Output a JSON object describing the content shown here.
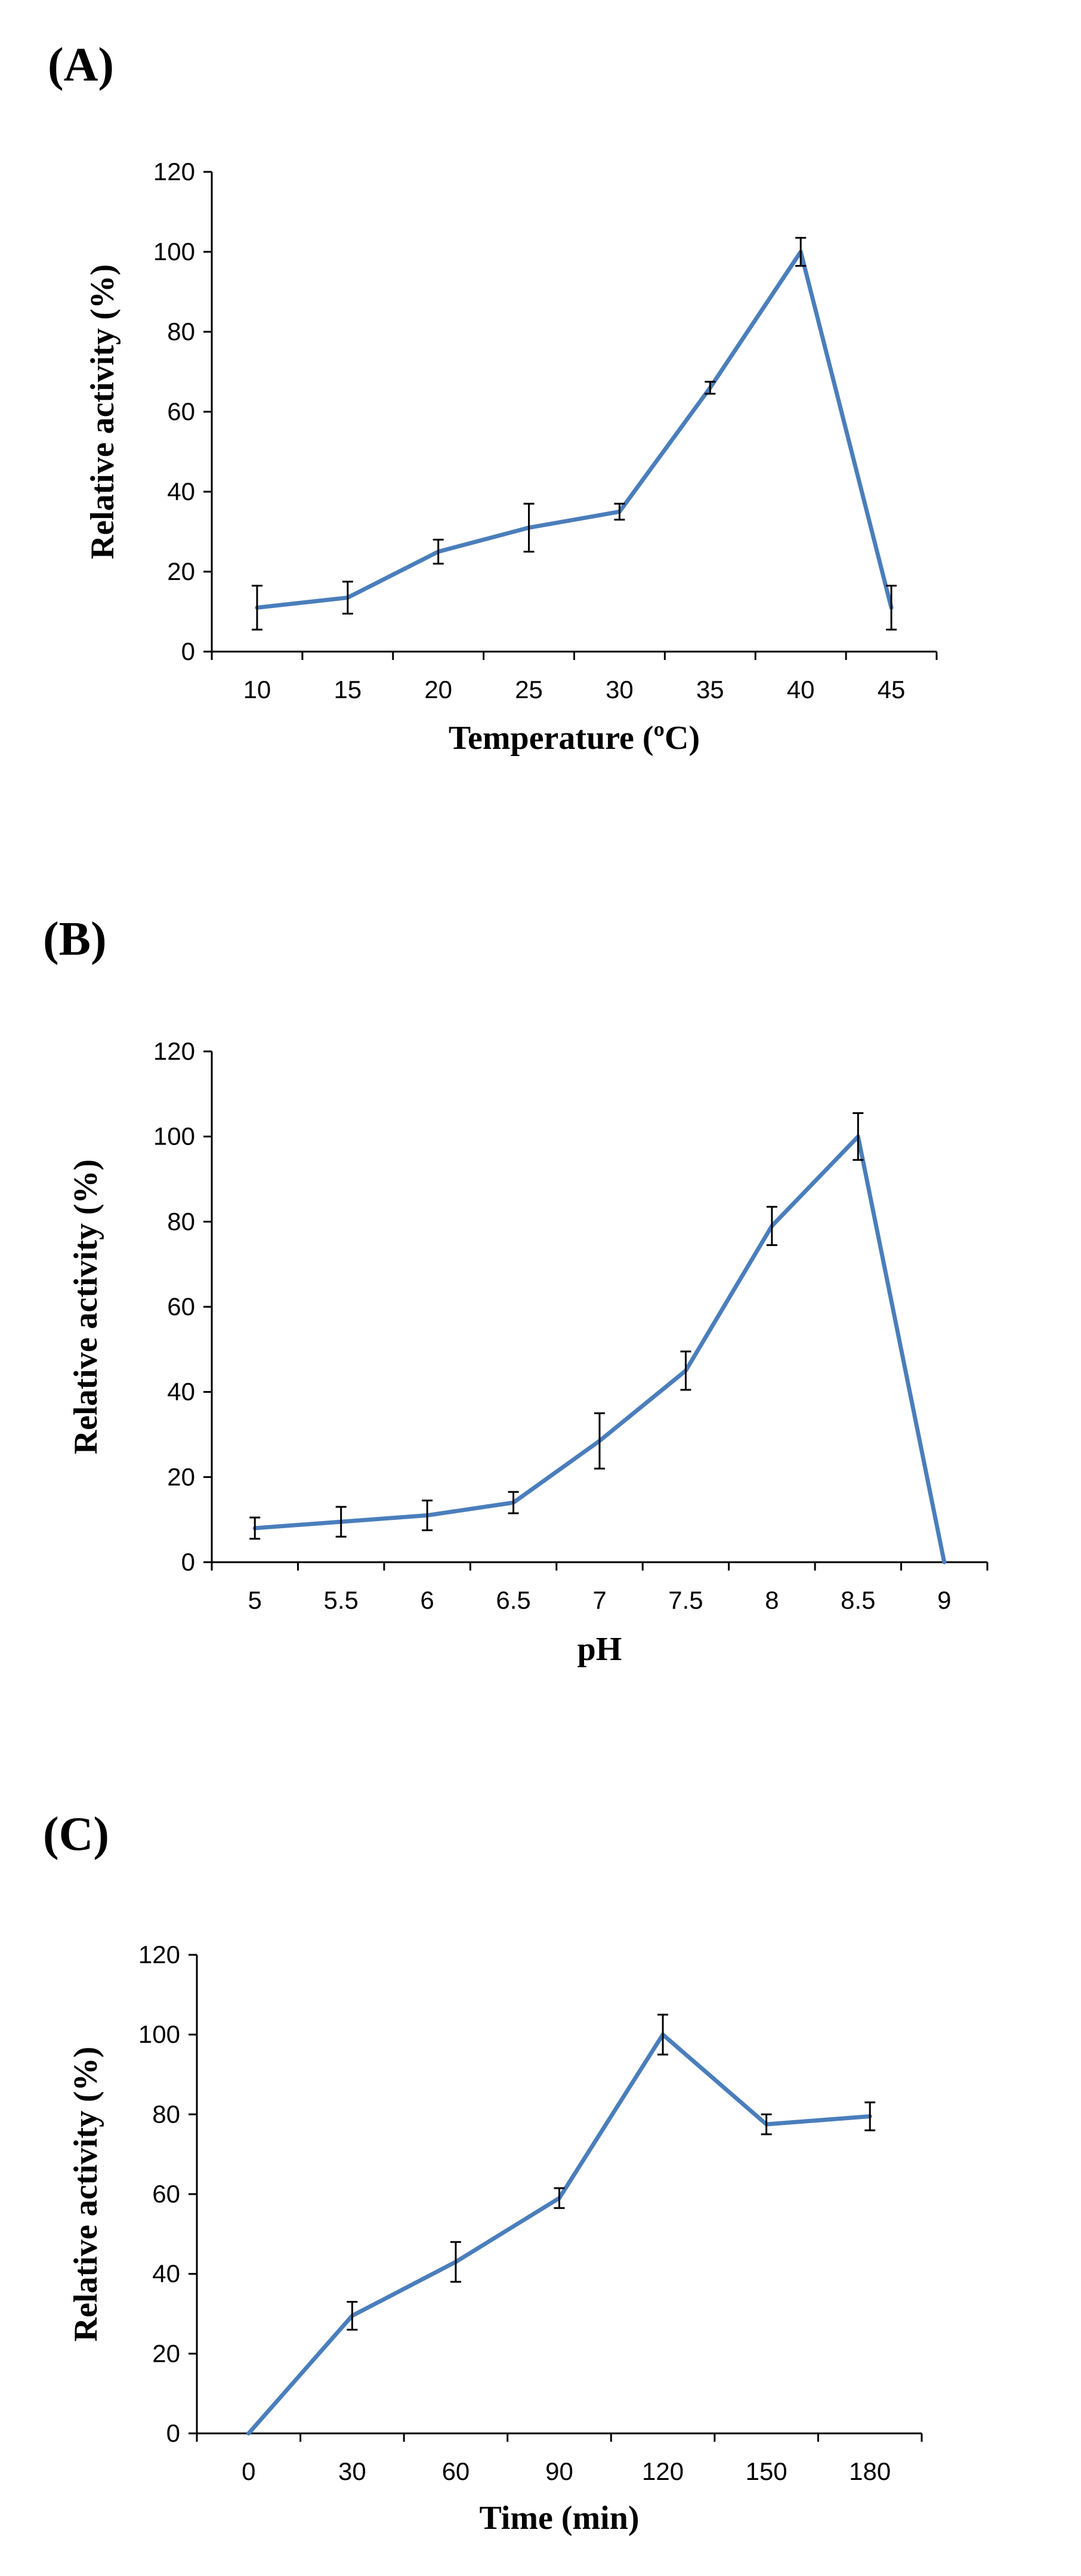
{
  "chart_data": [
    {
      "type": "line",
      "panel_label": "(A)",
      "xlabel": "Temperature (ºC)",
      "ylabel": "Relative activity (%)",
      "categories": [
        "10",
        "15",
        "20",
        "25",
        "30",
        "35",
        "40",
        "45"
      ],
      "values": [
        11,
        13.5,
        25,
        31,
        35,
        66,
        100,
        11
      ],
      "errors": [
        5.5,
        4,
        3,
        6,
        2,
        1.5,
        3.5,
        5.5
      ],
      "ylim": [
        0,
        120
      ],
      "yticks": [
        0,
        20,
        40,
        60,
        80,
        100,
        120
      ],
      "grid": false,
      "legend": "none",
      "color": "#4a7ebb"
    },
    {
      "type": "line",
      "panel_label": "(B)",
      "xlabel": "pH",
      "ylabel": "Relative activity (%)",
      "categories": [
        "5",
        "5.5",
        "6",
        "6.5",
        "7",
        "7.5",
        "8",
        "8.5",
        "9"
      ],
      "values": [
        8,
        9.5,
        11,
        14,
        28.5,
        45,
        79,
        100,
        0
      ],
      "errors": [
        2.5,
        3.5,
        3.5,
        2.5,
        6.5,
        4.5,
        4.5,
        5.5,
        0
      ],
      "ylim": [
        0,
        120
      ],
      "yticks": [
        0,
        20,
        40,
        60,
        80,
        100,
        120
      ],
      "grid": false,
      "legend": "none",
      "color": "#4a7ebb"
    },
    {
      "type": "line",
      "panel_label": "(C)",
      "xlabel": "Time (min)",
      "ylabel": "Relative activity (%)",
      "categories": [
        "0",
        "30",
        "60",
        "90",
        "120",
        "150",
        "180"
      ],
      "values": [
        0,
        29.5,
        43,
        59,
        100,
        77.5,
        79.5
      ],
      "errors": [
        0,
        3.5,
        5,
        2.5,
        5,
        2.5,
        3.5
      ],
      "ylim": [
        0,
        120
      ],
      "yticks": [
        0,
        20,
        40,
        60,
        80,
        100,
        120
      ],
      "grid": false,
      "legend": "none",
      "color": "#4a7ebb"
    }
  ]
}
